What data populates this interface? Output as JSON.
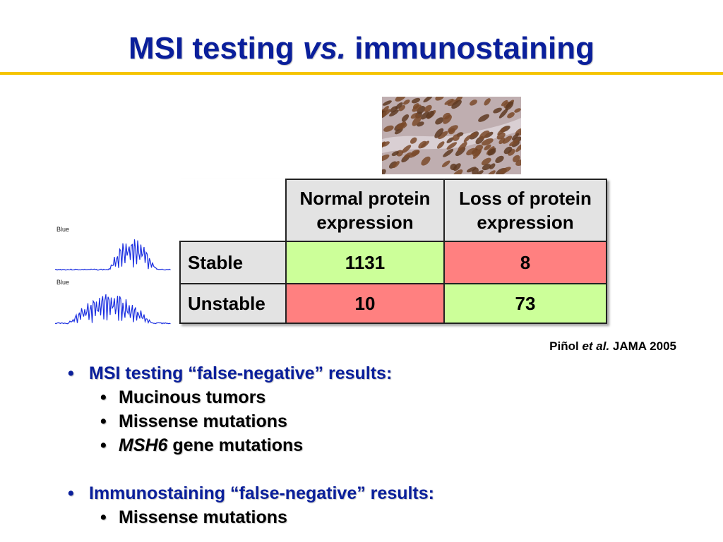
{
  "slide": {
    "title_part1": "MSI testing ",
    "title_italic": "vs.",
    "title_part2": " immunostaining",
    "accent_color": "#0a1f9b",
    "rule_color": "#f5c400"
  },
  "traces": {
    "label_top": "Blue",
    "label_bottom": "Blue"
  },
  "table": {
    "col_headers": [
      "Normal protein expression",
      "Loss of protein expression"
    ],
    "col_header_lines": [
      [
        "Normal protein",
        "expression"
      ],
      [
        "Loss of protein",
        "expression"
      ]
    ],
    "rows": [
      {
        "label": "Stable",
        "normal": "1131",
        "loss": "8"
      },
      {
        "label": "Unstable",
        "normal": "10",
        "loss": "73"
      }
    ],
    "colors": {
      "concordant": "#ccff99",
      "discordant": "#ff8080",
      "header": "#e3e3e3"
    }
  },
  "citation": {
    "author": "Piñol ",
    "etal": "et al.",
    "source": " JAMA 2005"
  },
  "bullets": {
    "msi_heading": "MSI testing “false-negative” results:",
    "msi_items": [
      {
        "italic": "",
        "text": "Mucinous tumors"
      },
      {
        "italic": "",
        "text": "Missense mutations"
      },
      {
        "italic": "MSH6",
        "text": " gene mutations"
      }
    ],
    "ihc_heading": "Immunostaining “false-negative” results:",
    "ihc_items": [
      {
        "italic": "",
        "text": "Missense mutations"
      }
    ]
  }
}
